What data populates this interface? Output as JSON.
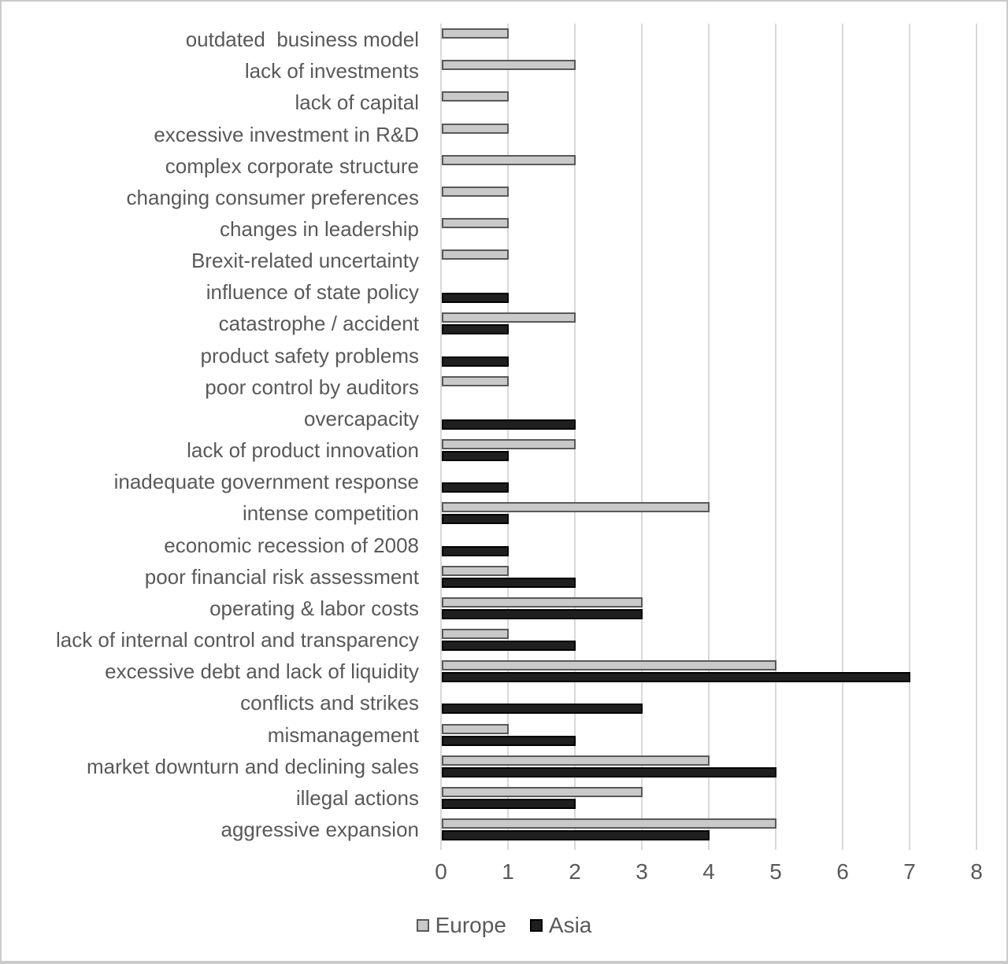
{
  "chart_data": {
    "type": "bar",
    "orientation": "horizontal",
    "title": "",
    "xlabel": "",
    "ylabel": "",
    "xlim": [
      0,
      8
    ],
    "xticks": [
      "0",
      "1",
      "2",
      "3",
      "4",
      "5",
      "6",
      "7",
      "8"
    ],
    "grid": true,
    "legend_position": "bottom-center",
    "categories": [
      "outdated  business model",
      "lack of investments",
      "lack of capital",
      "excessive investment in R&D",
      "complex corporate structure",
      "changing consumer preferences",
      "changes in leadership",
      "Brexit-related uncertainty",
      "influence of state policy",
      "catastrophe / accident",
      "product safety problems",
      "poor control by auditors",
      "overcapacity",
      "lack of product innovation",
      "inadequate government response",
      "intense competition",
      "economic recession of 2008",
      "poor financial risk assessment",
      "operating & labor costs",
      "lack of internal control and transparency",
      "excessive debt and lack of liquidity",
      "conflicts and strikes",
      "mismanagement",
      "market downturn and declining sales",
      "illegal actions",
      "aggressive expansion"
    ],
    "series": [
      {
        "name": "Europe",
        "fill": "#c9c9c9",
        "border": "#595959",
        "values": [
          1,
          2,
          1,
          1,
          2,
          1,
          1,
          1,
          0,
          2,
          0,
          1,
          0,
          2,
          0,
          4,
          0,
          1,
          3,
          1,
          5,
          0,
          1,
          4,
          3,
          5
        ]
      },
      {
        "name": "Asia",
        "fill": "#1f1f1f",
        "border": "#000000",
        "values": [
          0,
          0,
          0,
          0,
          0,
          0,
          0,
          0,
          1,
          1,
          1,
          0,
          2,
          1,
          1,
          1,
          1,
          2,
          3,
          2,
          7,
          3,
          2,
          5,
          2,
          4
        ]
      }
    ]
  },
  "colors": {
    "gridline": "#d9d9d9",
    "axis_text": "#595959",
    "label_text": "#595959",
    "frame_border": "#cbcbcb",
    "background": "#ffffff"
  }
}
